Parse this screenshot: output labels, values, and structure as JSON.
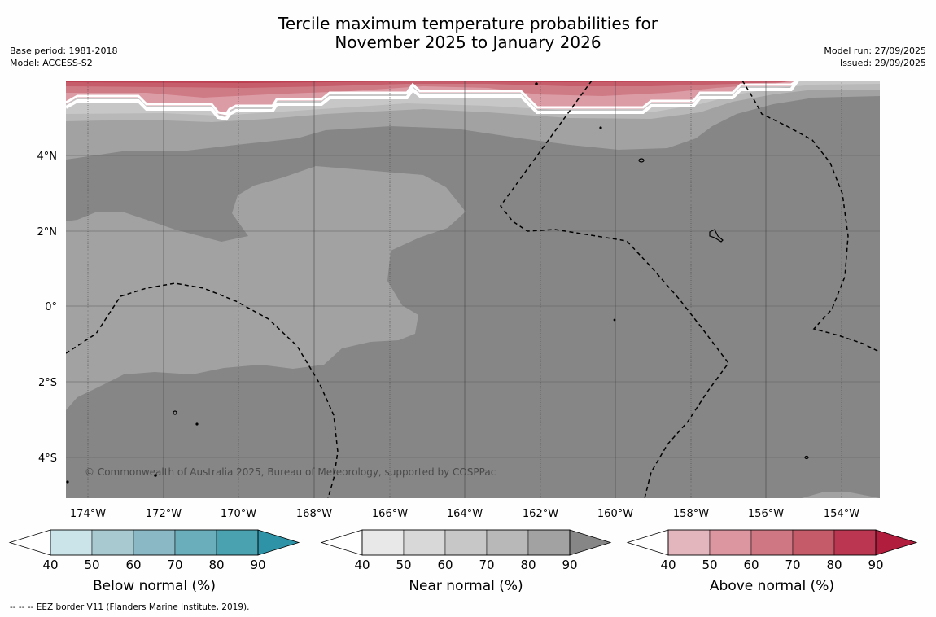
{
  "title": {
    "line1": "Tercile maximum temperature probabilities for",
    "line2": "November 2025 to January 2026"
  },
  "meta_left": {
    "base_period": "Base period: 1981-2018",
    "model": "Model: ACCESS-S2"
  },
  "meta_right": {
    "model_run": "Model run: 27/09/2025",
    "issued": "Issued: 29/09/2025"
  },
  "map": {
    "y_axis_labels": [
      "4°N",
      "2°N",
      "0°",
      "2°S",
      "4°S"
    ],
    "x_axis_labels": [
      "174°W",
      "172°W",
      "170°W",
      "168°W",
      "166°W",
      "164°W",
      "162°W",
      "160°W",
      "158°W",
      "156°W",
      "154°W"
    ],
    "copyright": "© Commonwealth of Australia 2025, Bureau of Meteorology, supported by COSPPac",
    "colors": {
      "near_90": "#868686",
      "near_80": "#a2a2a2",
      "near_70": "#b8b8b8",
      "near_60": "#c7c7c7",
      "near_50": "#d8d8d8",
      "above_50": "#dc9ca5",
      "above_60": "#cf7b86",
      "above_70": "#c65d6b",
      "above_80": "#bd3f52"
    }
  },
  "legends": [
    {
      "title": "Below normal (%)",
      "ticks": [
        "40",
        "50",
        "60",
        "70",
        "80",
        "90"
      ],
      "colors": [
        "#ffffff",
        "#cae4ea",
        "#a8c9cf",
        "#8ab8c4",
        "#6aaebc",
        "#4aa1b0",
        "#2e93a7"
      ]
    },
    {
      "title": "Near normal (%)",
      "ticks": [
        "40",
        "50",
        "60",
        "70",
        "80",
        "90"
      ],
      "colors": [
        "#ffffff",
        "#e8e8e8",
        "#d8d8d8",
        "#c7c7c7",
        "#b8b8b8",
        "#a2a2a2",
        "#868686"
      ]
    },
    {
      "title": "Above normal (%)",
      "ticks": [
        "40",
        "50",
        "60",
        "70",
        "80",
        "90"
      ],
      "colors": [
        "#ffffff",
        "#e3b5bc",
        "#db96a0",
        "#cf7883",
        "#c55b69",
        "#bb3650",
        "#b11d3d"
      ]
    }
  ],
  "footnote": "--  --  -- EEZ border V11 (Flanders Marine Institute, 2019)."
}
